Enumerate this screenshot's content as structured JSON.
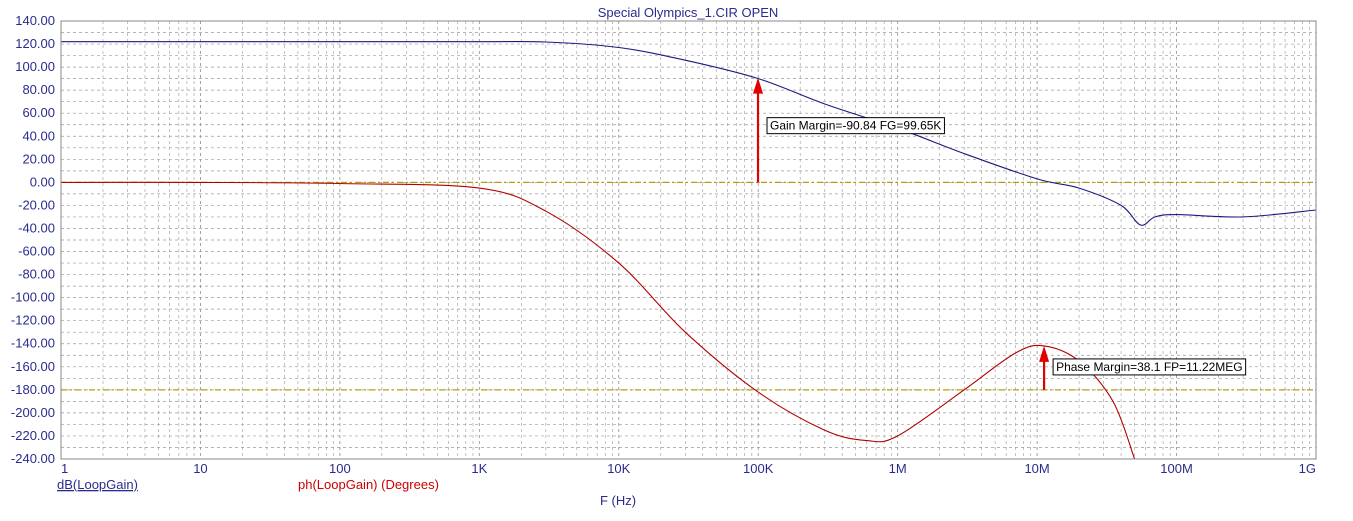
{
  "chart_data": {
    "type": "line",
    "title": "Special Olympics_1.CIR OPEN",
    "xlabel": "F (Hz)",
    "x_scale": "log",
    "xlim": [
      1,
      1000000000
    ],
    "ylim": [
      -240,
      140
    ],
    "y_ticks": [
      "140.00",
      "120.00",
      "100.00",
      "80.00",
      "60.00",
      "40.00",
      "20.00",
      "0.00",
      "-20.00",
      "-40.00",
      "-60.00",
      "-80.00",
      "-100.00",
      "-120.00",
      "-140.00",
      "-160.00",
      "-180.00",
      "-200.00",
      "-220.00",
      "-240.00"
    ],
    "x_ticks": [
      {
        "value": 1,
        "label": "1"
      },
      {
        "value": 10,
        "label": "10"
      },
      {
        "value": 100,
        "label": "100"
      },
      {
        "value": 1000,
        "label": "1K"
      },
      {
        "value": 10000,
        "label": "10K"
      },
      {
        "value": 100000,
        "label": "100K"
      },
      {
        "value": 1000000,
        "label": "1M"
      },
      {
        "value": 10000000,
        "label": "10M"
      },
      {
        "value": 100000000,
        "label": "100M"
      },
      {
        "value": 1000000000,
        "label": "1G"
      }
    ],
    "grid": true,
    "reference_lines": [
      0,
      -180
    ],
    "series": [
      {
        "name": "dB(LoopGain)",
        "color": "#1a1a80",
        "points": [
          [
            1,
            122
          ],
          [
            10,
            122
          ],
          [
            100,
            122
          ],
          [
            1000,
            122
          ],
          [
            3000,
            121.8
          ],
          [
            10000,
            117
          ],
          [
            30000,
            106
          ],
          [
            100000,
            90
          ],
          [
            300000,
            68
          ],
          [
            1000000,
            47
          ],
          [
            3000000,
            25
          ],
          [
            10000000,
            3
          ],
          [
            20000000,
            -5
          ],
          [
            40000000,
            -20
          ],
          [
            55000000,
            -37
          ],
          [
            70000000,
            -30
          ],
          [
            100000000,
            -28
          ],
          [
            300000000,
            -30
          ],
          [
            1000000000,
            -24
          ]
        ]
      },
      {
        "name": "ph(LoopGain) (Degrees)",
        "color": "#b30000",
        "points": [
          [
            1,
            0
          ],
          [
            10,
            0
          ],
          [
            100,
            -1
          ],
          [
            1000,
            -5
          ],
          [
            3000,
            -25
          ],
          [
            10000,
            -70
          ],
          [
            30000,
            -130
          ],
          [
            100000,
            -182
          ],
          [
            300000,
            -215
          ],
          [
            600000,
            -224
          ],
          [
            1000000,
            -220
          ],
          [
            3000000,
            -180
          ],
          [
            7000000,
            -148
          ],
          [
            11220000,
            -141.9
          ],
          [
            20000000,
            -155
          ],
          [
            35000000,
            -190
          ],
          [
            50000000,
            -240
          ]
        ]
      }
    ],
    "annotations": [
      {
        "text": "Gain Margin=-90.84 FG=99.65K",
        "x": 99650,
        "y_from": 0,
        "y_to": 90.84
      },
      {
        "text": "Phase Margin=38.1 FP=11.22MEG",
        "x": 11220000,
        "y_from": -180,
        "y_to": -141.9
      }
    ]
  }
}
